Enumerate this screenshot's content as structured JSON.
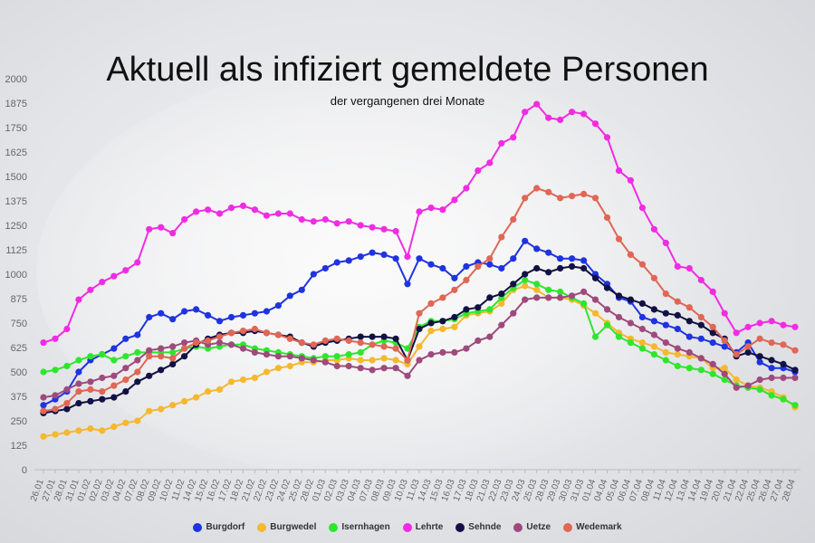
{
  "chart_data": {
    "type": "line",
    "title": "Aktuell als infiziert gemeldete Personen",
    "subtitle": "der vergangenen drei Monate",
    "xlabel": "",
    "ylabel": "",
    "ylim": [
      0,
      2000
    ],
    "yticks": [
      0,
      125,
      250,
      375,
      500,
      625,
      750,
      875,
      1000,
      1125,
      1250,
      1375,
      1500,
      1625,
      1750,
      1875,
      2000
    ],
    "grid": false,
    "legend_position": "bottom",
    "x_tick_labels": [
      "26.01",
      "27.01",
      "28.01",
      "31.01",
      "01.02",
      "02.02",
      "03.02",
      "04.02",
      "07.02",
      "08.02",
      "09.02",
      "10.02",
      "11.02",
      "14.02",
      "15.02",
      "16.02",
      "17.02",
      "18.02",
      "21.02",
      "22.02",
      "23.02",
      "24.02",
      "25.02",
      "28.02",
      "01.03",
      "02.03",
      "03.03",
      "04.03",
      "07.03",
      "08.03",
      "09.03",
      "10.03",
      "11.03",
      "14.03",
      "15.03",
      "16.03",
      "17.03",
      "18.03",
      "21.03",
      "22.03",
      "23.03",
      "24.03",
      "25.03",
      "28.03",
      "29.03",
      "30.03",
      "31.03",
      "01.04",
      "04.04",
      "05.04",
      "06.04",
      "07.04",
      "08.04",
      "11.04",
      "12.04",
      "13.04",
      "14.04",
      "19.04",
      "20.04",
      "21.04",
      "22.04",
      "25.04",
      "26.04",
      "27.04",
      "28.04"
    ],
    "series": [
      {
        "name": "Burgdorf",
        "color": "#1f33e0",
        "values": [
          330,
          360,
          400,
          500,
          560,
          590,
          620,
          670,
          690,
          780,
          800,
          770,
          810,
          820,
          790,
          760,
          780,
          790,
          800,
          810,
          840,
          890,
          920,
          1000,
          1030,
          1060,
          1070,
          1090,
          1110,
          1100,
          1080,
          950,
          1080,
          1050,
          1030,
          980,
          1040,
          1060,
          1050,
          1030,
          1080,
          1170,
          1130,
          1110,
          1080,
          1080,
          1070,
          1000,
          950,
          880,
          860,
          780,
          760,
          740,
          720,
          680,
          670,
          650,
          630,
          600,
          650,
          550,
          520,
          520,
          500
        ]
      },
      {
        "name": "Burgwedel",
        "color": "#f5b82e",
        "values": [
          170,
          180,
          190,
          200,
          210,
          200,
          220,
          240,
          250,
          300,
          310,
          330,
          350,
          370,
          400,
          410,
          450,
          460,
          470,
          500,
          520,
          530,
          550,
          550,
          560,
          560,
          570,
          560,
          560,
          570,
          560,
          540,
          630,
          710,
          720,
          730,
          790,
          800,
          810,
          850,
          920,
          940,
          920,
          880,
          880,
          870,
          840,
          800,
          750,
          700,
          670,
          650,
          630,
          600,
          590,
          580,
          570,
          520,
          520,
          460,
          430,
          420,
          400,
          370,
          320
        ]
      },
      {
        "name": "Isernhagen",
        "color": "#2ee62e",
        "values": [
          500,
          510,
          530,
          560,
          580,
          590,
          560,
          580,
          600,
          600,
          600,
          600,
          620,
          630,
          620,
          630,
          640,
          640,
          620,
          610,
          600,
          590,
          580,
          570,
          580,
          580,
          590,
          600,
          640,
          660,
          650,
          620,
          730,
          760,
          760,
          770,
          800,
          810,
          820,
          880,
          930,
          970,
          950,
          920,
          910,
          880,
          850,
          680,
          740,
          680,
          650,
          620,
          590,
          560,
          530,
          520,
          510,
          490,
          460,
          430,
          420,
          410,
          380,
          360,
          330
        ]
      },
      {
        "name": "Lehrte",
        "color": "#f02ce3",
        "values": [
          650,
          670,
          720,
          870,
          920,
          960,
          990,
          1020,
          1060,
          1230,
          1240,
          1210,
          1280,
          1320,
          1330,
          1310,
          1340,
          1350,
          1330,
          1300,
          1310,
          1310,
          1280,
          1270,
          1280,
          1260,
          1270,
          1250,
          1240,
          1230,
          1220,
          1090,
          1320,
          1340,
          1330,
          1380,
          1440,
          1530,
          1570,
          1670,
          1700,
          1830,
          1870,
          1800,
          1790,
          1830,
          1820,
          1770,
          1700,
          1530,
          1480,
          1340,
          1230,
          1160,
          1040,
          1030,
          970,
          910,
          800,
          700,
          730,
          750,
          760,
          740,
          730
        ]
      },
      {
        "name": "Sehnde",
        "color": "#111144",
        "values": [
          290,
          300,
          310,
          340,
          350,
          360,
          370,
          400,
          450,
          480,
          510,
          540,
          580,
          640,
          670,
          690,
          700,
          700,
          710,
          700,
          690,
          680,
          650,
          630,
          650,
          660,
          670,
          680,
          680,
          680,
          670,
          560,
          720,
          750,
          760,
          780,
          820,
          830,
          880,
          900,
          950,
          1000,
          1030,
          1010,
          1030,
          1040,
          1030,
          980,
          930,
          890,
          870,
          850,
          820,
          800,
          790,
          760,
          740,
          700,
          670,
          580,
          600,
          580,
          560,
          540,
          510
        ]
      },
      {
        "name": "Uetze",
        "color": "#9e4a7d",
        "values": [
          370,
          380,
          410,
          440,
          450,
          470,
          480,
          520,
          560,
          610,
          620,
          630,
          650,
          660,
          640,
          650,
          640,
          620,
          600,
          590,
          580,
          580,
          570,
          560,
          550,
          530,
          530,
          520,
          510,
          520,
          520,
          480,
          560,
          590,
          600,
          600,
          620,
          660,
          680,
          740,
          800,
          870,
          880,
          880,
          880,
          890,
          910,
          870,
          820,
          780,
          750,
          720,
          690,
          650,
          620,
          600,
          570,
          540,
          490,
          420,
          430,
          460,
          470,
          470,
          470
        ]
      },
      {
        "name": "Wedemark",
        "color": "#e06655",
        "values": [
          300,
          310,
          340,
          400,
          410,
          400,
          430,
          460,
          500,
          580,
          580,
          570,
          620,
          650,
          660,
          680,
          700,
          710,
          720,
          700,
          690,
          670,
          650,
          640,
          660,
          670,
          660,
          650,
          640,
          630,
          620,
          560,
          800,
          850,
          880,
          920,
          970,
          1040,
          1080,
          1190,
          1280,
          1390,
          1440,
          1420,
          1390,
          1400,
          1410,
          1390,
          1290,
          1180,
          1100,
          1050,
          980,
          900,
          860,
          830,
          780,
          730,
          660,
          590,
          630,
          670,
          650,
          640,
          610
        ]
      }
    ]
  }
}
